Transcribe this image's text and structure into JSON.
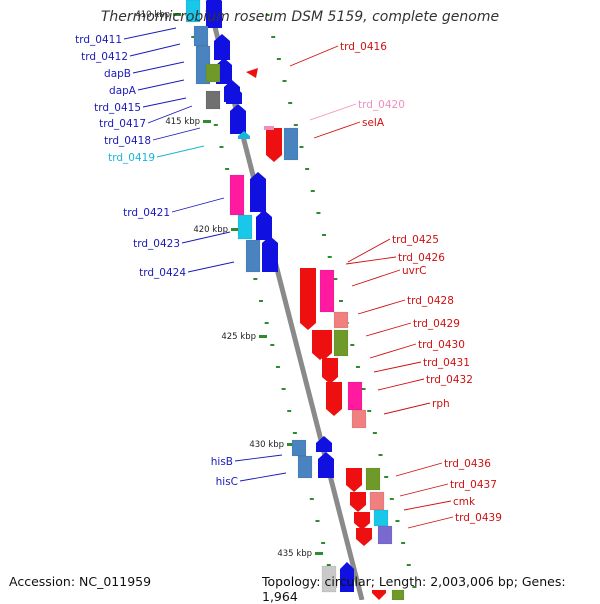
{
  "title": "Thermomicrobium roseum DSM 5159, complete genome",
  "footer": {
    "accession": "Accession: NC_011959",
    "topology": "Topology: circular; Length: 2,003,006 bp; Genes: 1,964"
  },
  "colors": {
    "backbone": "#8a8a8a",
    "tick": "#2e8b2e",
    "left_label": "#1a1ab8",
    "right_label": "#d01010",
    "cyan_label": "#19b6d8",
    "pink_label": "#f08ec0",
    "blue_arrow": "#1010e0",
    "red_arrow": "#ee1010",
    "magenta_cog": "#ff1aa0",
    "steel_cog": "#4a84c0",
    "cyan_cog": "#19c8e8",
    "olive_cog": "#6f9a2a",
    "gray_cog": "#707070",
    "salmon_cog": "#f08080",
    "purple_cog": "#7a6ad0"
  },
  "ticks": [
    {
      "label": "410 kbp"
    },
    {
      "label": "415 kbp"
    },
    {
      "label": "420 kbp"
    },
    {
      "label": "425 kbp"
    },
    {
      "label": "430 kbp"
    },
    {
      "label": "435 kbp"
    }
  ],
  "genes_left": [
    {
      "label": "trd_0411",
      "color": "left_label"
    },
    {
      "label": "trd_0412",
      "color": "left_label"
    },
    {
      "label": "dapB",
      "color": "left_label"
    },
    {
      "label": "dapA",
      "color": "left_label"
    },
    {
      "label": "trd_0415",
      "color": "left_label"
    },
    {
      "label": "trd_0417",
      "color": "left_label"
    },
    {
      "label": "trd_0418",
      "color": "left_label"
    },
    {
      "label": "trd_0419",
      "color": "cyan_label"
    },
    {
      "label": "trd_0421",
      "color": "left_label"
    },
    {
      "label": "trd_0423",
      "color": "left_label"
    },
    {
      "label": "trd_0424",
      "color": "left_label"
    },
    {
      "label": "hisB",
      "color": "left_label"
    },
    {
      "label": "hisC",
      "color": "left_label"
    }
  ],
  "genes_right": [
    {
      "label": "trd_0416",
      "color": "right_label"
    },
    {
      "label": "trd_0420",
      "color": "pink_label"
    },
    {
      "label": "selA",
      "color": "right_label"
    },
    {
      "label": "trd_0425",
      "color": "right_label"
    },
    {
      "label": "trd_0426",
      "color": "right_label"
    },
    {
      "label": "uvrC",
      "color": "right_label"
    },
    {
      "label": "trd_0428",
      "color": "right_label"
    },
    {
      "label": "trd_0429",
      "color": "right_label"
    },
    {
      "label": "trd_0430",
      "color": "right_label"
    },
    {
      "label": "trd_0431",
      "color": "right_label"
    },
    {
      "label": "trd_0432",
      "color": "right_label"
    },
    {
      "label": "rph",
      "color": "right_label"
    },
    {
      "label": "trd_0436",
      "color": "right_label"
    },
    {
      "label": "trd_0437",
      "color": "right_label"
    },
    {
      "label": "cmk",
      "color": "right_label"
    },
    {
      "label": "trd_0439",
      "color": "right_label"
    }
  ]
}
